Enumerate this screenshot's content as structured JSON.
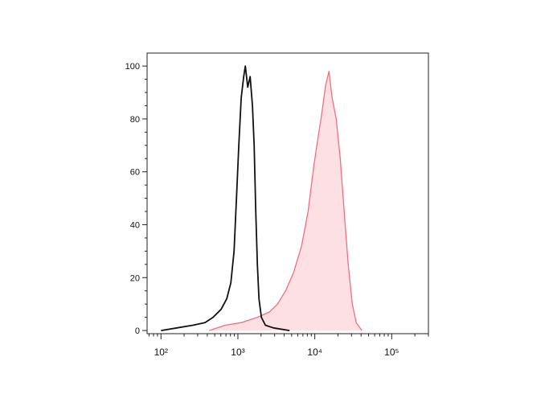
{
  "chart_data": {
    "type": "line",
    "xscale": "log",
    "xlim": [
      66,
      300000
    ],
    "ylim": [
      -1.2,
      104.9
    ],
    "xticks": [
      {
        "value": 100,
        "label": "10²"
      },
      {
        "value": 1000,
        "label": "10³"
      },
      {
        "value": 10000,
        "label": "10⁴"
      },
      {
        "value": 100000,
        "label": "10⁵"
      }
    ],
    "yticks": [
      0,
      20,
      40,
      60,
      80,
      100
    ],
    "series": [
      {
        "color": "#111111",
        "fill": null,
        "x": [
          100,
          161,
          260,
          374,
          476,
          606,
          717,
          810,
          891,
          958,
          1029,
          1106,
          1189,
          1248,
          1342,
          1442,
          1549,
          1626,
          1706,
          1791,
          1880,
          2019,
          2278,
          2899,
          4690
        ],
        "values": [
          0,
          1,
          2,
          3,
          5,
          8,
          12,
          18,
          30,
          50,
          70,
          88,
          96,
          100,
          92,
          96,
          85,
          70,
          45,
          25,
          12,
          5,
          2,
          1,
          0
        ]
      },
      {
        "color": "#f07080",
        "fill": "#fde0e3",
        "x": [
          422,
          684,
          1107,
          1791,
          2571,
          3272,
          4170,
          5300,
          6730,
          8170,
          9670,
          10900,
          12300,
          13900,
          15300,
          16800,
          19000,
          21400,
          24100,
          27200,
          30700,
          34600,
          41000
        ],
        "values": [
          0,
          2,
          3,
          5,
          7,
          10,
          15,
          22,
          32,
          45,
          62,
          72,
          82,
          93,
          98,
          88,
          80,
          65,
          45,
          25,
          10,
          3,
          0
        ]
      }
    ]
  }
}
